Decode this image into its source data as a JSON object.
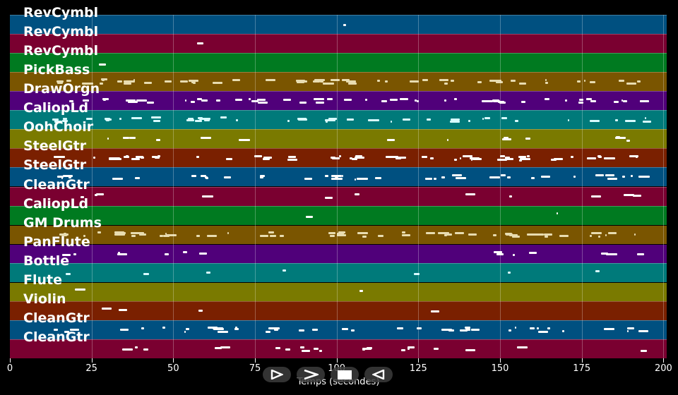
{
  "viewer": {
    "tracks": [
      {
        "name": "RevCymbl",
        "color": "#005080"
      },
      {
        "name": "RevCymbl",
        "color": "#7a0030"
      },
      {
        "name": "RevCymbl",
        "color": "#007a20"
      },
      {
        "name": "PickBass",
        "color": "#7a5500"
      },
      {
        "name": "DrawOrgn",
        "color": "#50007a"
      },
      {
        "name": "CaliopLd",
        "color": "#007a7a"
      },
      {
        "name": "OohChoir",
        "color": "#7a7a00"
      },
      {
        "name": "SteelGtr",
        "color": "#7a2000"
      },
      {
        "name": "SteelGtr",
        "color": "#005080"
      },
      {
        "name": "CleanGtr",
        "color": "#7a0030"
      },
      {
        "name": "CaliopLd",
        "color": "#007a20"
      },
      {
        "name": "GM Drums",
        "color": "#7a5500"
      },
      {
        "name": "PanFlute",
        "color": "#50007a"
      },
      {
        "name": "Bottle",
        "color": "#007a7a"
      },
      {
        "name": "Flute",
        "color": "#7a7a00"
      },
      {
        "name": "Violin",
        "color": "#7a2000"
      },
      {
        "name": "CleanGtr",
        "color": "#005080"
      },
      {
        "name": "CleanGtr",
        "color": "#7a0030"
      }
    ],
    "x_axis": {
      "label": "Temps (secondes)",
      "ticks": [
        "0",
        "25",
        "50",
        "75",
        "100",
        "125",
        "150",
        "175",
        "200"
      ],
      "range": [
        0,
        201
      ]
    },
    "controls": [
      {
        "name": "play",
        "icon": "play-icon"
      },
      {
        "name": "forward",
        "icon": "forward-icon"
      },
      {
        "name": "stop",
        "icon": "stop-icon"
      },
      {
        "name": "rewind",
        "icon": "rewind-icon"
      }
    ]
  }
}
